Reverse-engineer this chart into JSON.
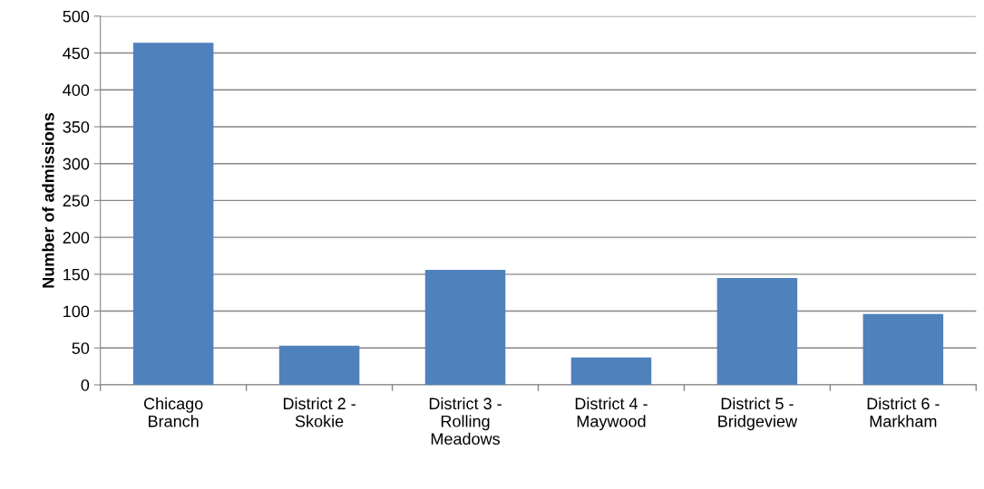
{
  "chart_data": {
    "type": "bar",
    "ylabel": "Number of admissions",
    "categories": [
      "Chicago\nBranch",
      "District 2 -\nSkokie",
      "District 3 -\nRolling\nMeadows",
      "District 4 -\nMaywood",
      "District 5 -\nBridgeview",
      "District 6 -\nMarkham"
    ],
    "values": [
      464,
      53,
      156,
      37,
      145,
      96
    ],
    "color": "#4f81bd",
    "ylim": [
      0,
      500
    ],
    "yticks": [
      0,
      50,
      100,
      150,
      200,
      250,
      300,
      350,
      400,
      450,
      500
    ],
    "grid": "y"
  }
}
